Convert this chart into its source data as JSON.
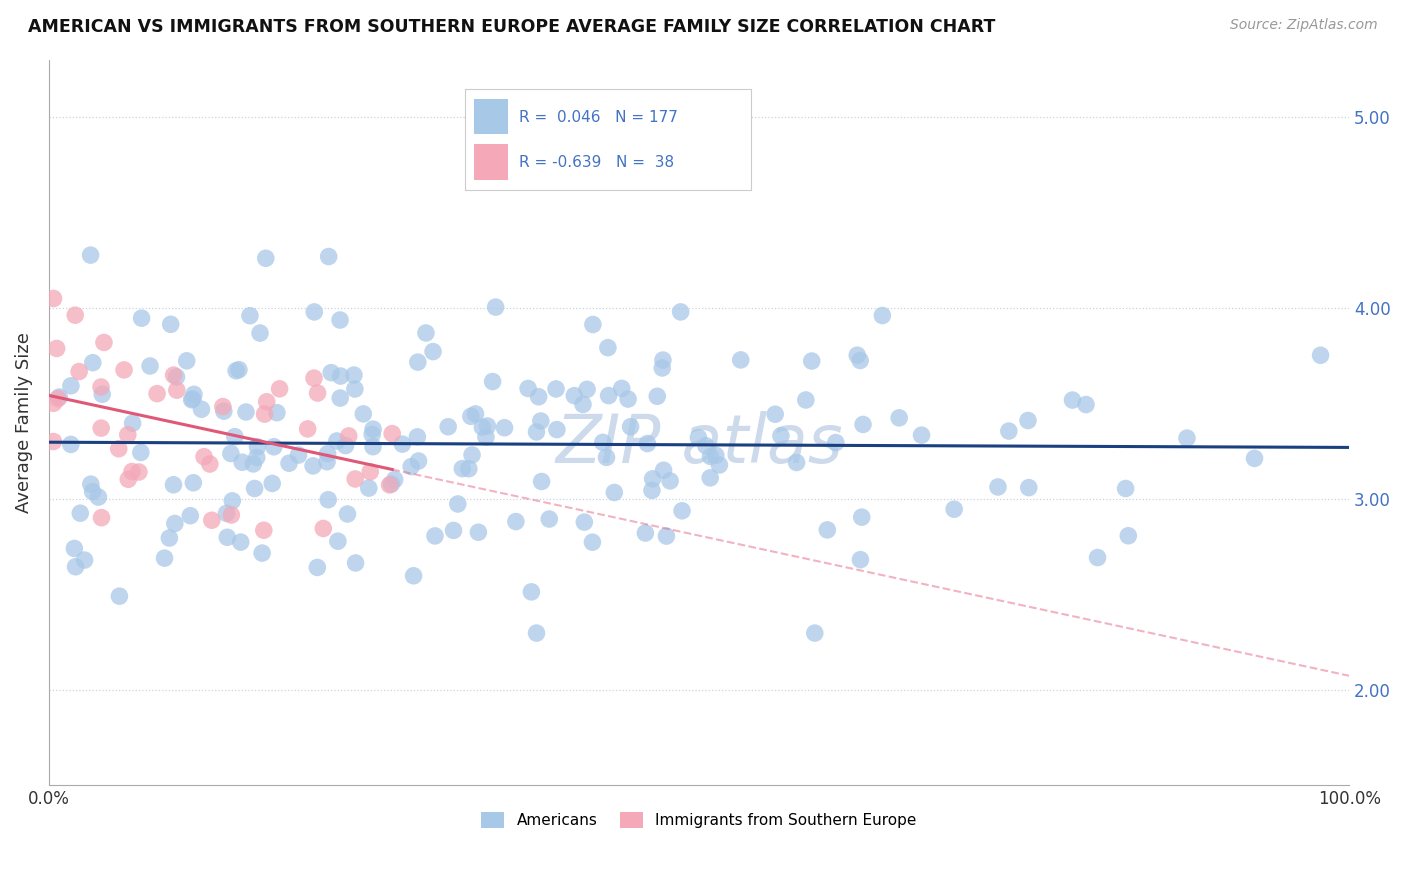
{
  "title": "AMERICAN VS IMMIGRANTS FROM SOUTHERN EUROPE AVERAGE FAMILY SIZE CORRELATION CHART",
  "source": "Source: ZipAtlas.com",
  "ylabel": "Average Family Size",
  "legend_label_americans": "Americans",
  "legend_label_immigrants": "Immigrants from Southern Europe",
  "r_americans": 0.046,
  "n_americans": 177,
  "r_immigrants": -0.639,
  "n_immigrants": 38,
  "blue_color": "#a8c8e8",
  "pink_color": "#f4a8b8",
  "blue_line_color": "#1a4080",
  "pink_line_color": "#e05878",
  "watermark_color": "#ccdaeb",
  "background_color": "#ffffff",
  "grid_color": "#c8d4e0",
  "ylim": [
    1.5,
    5.3
  ],
  "xlim": [
    0.0,
    1.0
  ],
  "yticks": [
    2.0,
    3.0,
    4.0,
    5.0
  ],
  "seed_blue": 42,
  "seed_pink": 7
}
